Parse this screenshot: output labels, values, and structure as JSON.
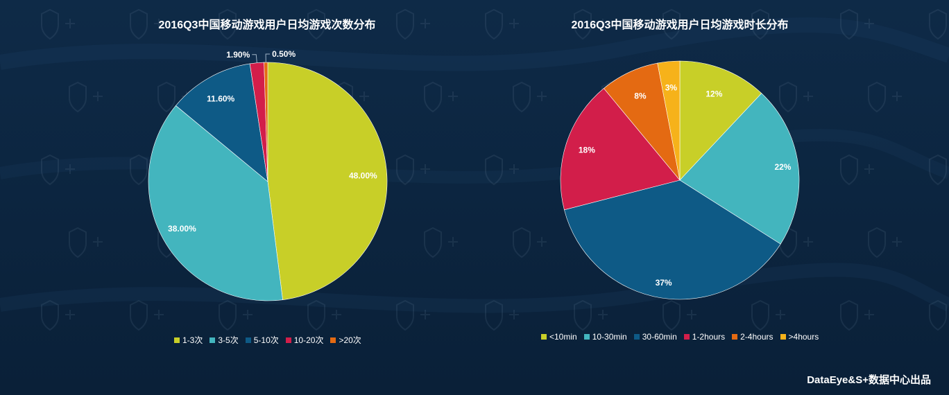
{
  "chart_data": [
    {
      "type": "pie",
      "title": "2016Q3中国移动游戏用户日均游戏次数分布",
      "categories": [
        "1-3次",
        "3-5次",
        "5-10次",
        "10-20次",
        ">20次"
      ],
      "values": [
        48.0,
        38.0,
        11.6,
        1.9,
        0.5
      ],
      "labels": [
        "48.00%",
        "38.00%",
        "11.60%",
        "1.90%",
        "0.50%"
      ],
      "colors": [
        "#c8cf28",
        "#43b5be",
        "#0e5a86",
        "#d21e4a",
        "#e46a12"
      ],
      "legend_position": "bottom"
    },
    {
      "type": "pie",
      "title": "2016Q3中国移动游戏用户日均游戏时长分布",
      "categories": [
        "<10min",
        "10-30min",
        "30-60min",
        "1-2hours",
        "2-4hours",
        ">4hours"
      ],
      "values": [
        12,
        22,
        37,
        18,
        8,
        3
      ],
      "labels": [
        "12%",
        "22%",
        "37%",
        "18%",
        "8%",
        "3%"
      ],
      "colors": [
        "#c8cf28",
        "#43b5be",
        "#0e5a86",
        "#d21e4a",
        "#e46a12",
        "#f6b21a"
      ],
      "legend_position": "bottom"
    }
  ],
  "footer": "DataEye&S+数据中心出品"
}
